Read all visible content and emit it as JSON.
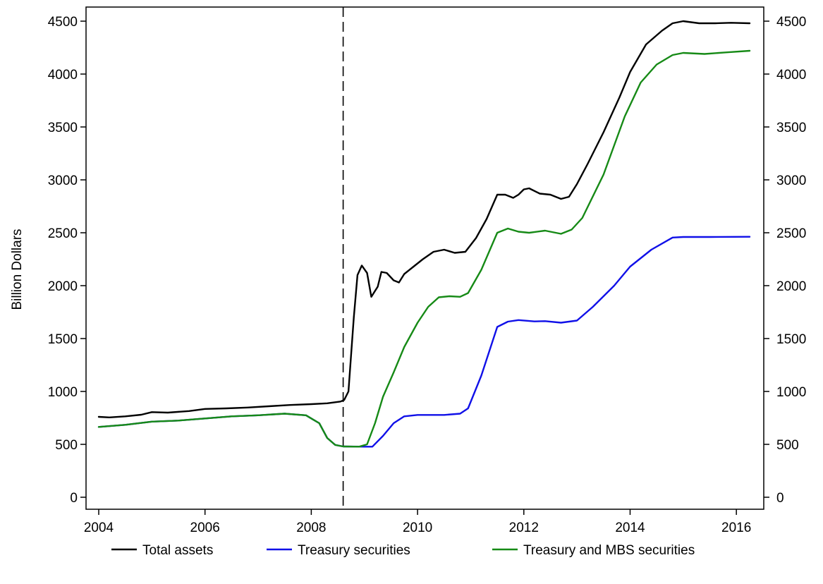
{
  "chart_data": {
    "type": "line",
    "title": "",
    "xlabel": "",
    "ylabel": "Billion Dollars",
    "xlim": [
      2004,
      2016.25
    ],
    "ylim": [
      0,
      4500
    ],
    "x_ticks": [
      "2004",
      "2006",
      "2008",
      "2010",
      "2012",
      "2014",
      "2016"
    ],
    "y_ticks": [
      "0",
      "500",
      "1000",
      "1500",
      "2000",
      "2500",
      "3000",
      "3500",
      "4000",
      "4500"
    ],
    "secondary_y_axis": true,
    "grid": false,
    "legend_position": "bottom",
    "vertical_reference_line": {
      "x": 2008.6,
      "style": "dashed"
    },
    "series": [
      {
        "name": "Total assets",
        "color": "#000000",
        "points": [
          [
            2004.0,
            760
          ],
          [
            2004.2,
            755
          ],
          [
            2004.5,
            765
          ],
          [
            2004.8,
            780
          ],
          [
            2005.0,
            805
          ],
          [
            2005.3,
            800
          ],
          [
            2005.7,
            815
          ],
          [
            2006.0,
            835
          ],
          [
            2006.4,
            840
          ],
          [
            2006.8,
            848
          ],
          [
            2007.2,
            860
          ],
          [
            2007.6,
            872
          ],
          [
            2008.0,
            880
          ],
          [
            2008.3,
            888
          ],
          [
            2008.55,
            905
          ],
          [
            2008.62,
            920
          ],
          [
            2008.7,
            1000
          ],
          [
            2008.8,
            1700
          ],
          [
            2008.87,
            2100
          ],
          [
            2008.95,
            2190
          ],
          [
            2009.05,
            2120
          ],
          [
            2009.13,
            1895
          ],
          [
            2009.25,
            1990
          ],
          [
            2009.32,
            2130
          ],
          [
            2009.42,
            2120
          ],
          [
            2009.55,
            2050
          ],
          [
            2009.65,
            2030
          ],
          [
            2009.75,
            2110
          ],
          [
            2009.9,
            2170
          ],
          [
            2010.1,
            2250
          ],
          [
            2010.3,
            2320
          ],
          [
            2010.5,
            2340
          ],
          [
            2010.7,
            2310
          ],
          [
            2010.9,
            2320
          ],
          [
            2011.1,
            2450
          ],
          [
            2011.3,
            2630
          ],
          [
            2011.5,
            2860
          ],
          [
            2011.65,
            2860
          ],
          [
            2011.8,
            2830
          ],
          [
            2011.9,
            2860
          ],
          [
            2012.0,
            2910
          ],
          [
            2012.1,
            2920
          ],
          [
            2012.3,
            2870
          ],
          [
            2012.5,
            2860
          ],
          [
            2012.7,
            2820
          ],
          [
            2012.85,
            2840
          ],
          [
            2013.0,
            2960
          ],
          [
            2013.2,
            3150
          ],
          [
            2013.5,
            3450
          ],
          [
            2013.8,
            3780
          ],
          [
            2014.0,
            4020
          ],
          [
            2014.3,
            4280
          ],
          [
            2014.6,
            4410
          ],
          [
            2014.8,
            4480
          ],
          [
            2015.0,
            4500
          ],
          [
            2015.3,
            4480
          ],
          [
            2015.6,
            4480
          ],
          [
            2015.9,
            4485
          ],
          [
            2016.25,
            4480
          ]
        ]
      },
      {
        "name": "Treasury securities",
        "color": "#1010e8",
        "points": [
          [
            2004.0,
            665
          ],
          [
            2004.5,
            685
          ],
          [
            2005.0,
            715
          ],
          [
            2005.5,
            725
          ],
          [
            2006.0,
            745
          ],
          [
            2006.5,
            765
          ],
          [
            2007.0,
            775
          ],
          [
            2007.5,
            790
          ],
          [
            2007.9,
            775
          ],
          [
            2008.0,
            745
          ],
          [
            2008.15,
            700
          ],
          [
            2008.3,
            560
          ],
          [
            2008.45,
            495
          ],
          [
            2008.6,
            480
          ],
          [
            2009.0,
            478
          ],
          [
            2009.15,
            478
          ],
          [
            2009.35,
            580
          ],
          [
            2009.55,
            700
          ],
          [
            2009.75,
            765
          ],
          [
            2010.0,
            778
          ],
          [
            2010.5,
            778
          ],
          [
            2010.8,
            790
          ],
          [
            2010.95,
            840
          ],
          [
            2011.2,
            1150
          ],
          [
            2011.5,
            1610
          ],
          [
            2011.7,
            1660
          ],
          [
            2011.9,
            1675
          ],
          [
            2012.2,
            1662
          ],
          [
            2012.4,
            1665
          ],
          [
            2012.7,
            1650
          ],
          [
            2013.0,
            1670
          ],
          [
            2013.3,
            1800
          ],
          [
            2013.7,
            2000
          ],
          [
            2014.0,
            2180
          ],
          [
            2014.4,
            2340
          ],
          [
            2014.8,
            2455
          ],
          [
            2015.0,
            2460
          ],
          [
            2015.5,
            2460
          ],
          [
            2016.25,
            2462
          ]
        ]
      },
      {
        "name": "Treasury and MBS securities",
        "color": "#168a16",
        "points": [
          [
            2004.0,
            665
          ],
          [
            2004.5,
            685
          ],
          [
            2005.0,
            715
          ],
          [
            2005.5,
            725
          ],
          [
            2006.0,
            745
          ],
          [
            2006.5,
            765
          ],
          [
            2007.0,
            775
          ],
          [
            2007.5,
            790
          ],
          [
            2007.9,
            775
          ],
          [
            2008.0,
            745
          ],
          [
            2008.15,
            700
          ],
          [
            2008.3,
            560
          ],
          [
            2008.45,
            495
          ],
          [
            2008.6,
            480
          ],
          [
            2008.9,
            478
          ],
          [
            2009.05,
            500
          ],
          [
            2009.2,
            700
          ],
          [
            2009.35,
            950
          ],
          [
            2009.55,
            1180
          ],
          [
            2009.75,
            1420
          ],
          [
            2010.0,
            1650
          ],
          [
            2010.2,
            1800
          ],
          [
            2010.4,
            1890
          ],
          [
            2010.6,
            1900
          ],
          [
            2010.8,
            1895
          ],
          [
            2010.95,
            1930
          ],
          [
            2011.2,
            2150
          ],
          [
            2011.5,
            2500
          ],
          [
            2011.7,
            2540
          ],
          [
            2011.9,
            2510
          ],
          [
            2012.1,
            2500
          ],
          [
            2012.4,
            2520
          ],
          [
            2012.7,
            2490
          ],
          [
            2012.9,
            2530
          ],
          [
            2013.1,
            2640
          ],
          [
            2013.5,
            3050
          ],
          [
            2013.9,
            3600
          ],
          [
            2014.2,
            3920
          ],
          [
            2014.5,
            4090
          ],
          [
            2014.8,
            4180
          ],
          [
            2015.0,
            4200
          ],
          [
            2015.4,
            4190
          ],
          [
            2015.8,
            4205
          ],
          [
            2016.25,
            4220
          ]
        ]
      }
    ]
  }
}
